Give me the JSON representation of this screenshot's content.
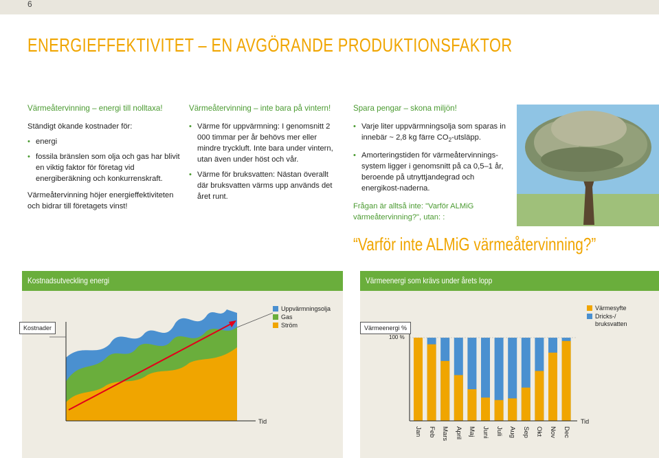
{
  "page_number": "6",
  "title": "ENERGIEFFEKTIVITET – EN AVGÖRANDE PRODUKTIONSFAKTOR",
  "col1": {
    "heading": "Värmeåtervinning – energi till nolltaxa!",
    "intro": "Ständigt ökande kostnader för:",
    "bullets": [
      "energi",
      "fossila bränslen som olja och gas har blivit en viktig faktor för företag vid energiberäkning och konkurrenskraft."
    ],
    "para": "Värmeåtervinning höjer energieffektiviteten och bidrar till företagets vinst!"
  },
  "col2": {
    "heading": "Värmeåtervinning – inte bara på vintern!",
    "bullets": [
      "Värme för uppvärmning: I genomsnitt 2 000 timmar per år behövs mer eller mindre tryckluft. Inte bara under vintern, utan även under höst och vår.",
      "Värme för bruksvatten: Nästan överallt där bruksvatten värms upp används det året runt."
    ]
  },
  "col3": {
    "heading": "Spara pengar – skona miljön!",
    "bullet1_a": "Varje liter uppvärmningsolja som sparas in innebär ~ 2,8 kg färre CO",
    "bullet1_sub": "2",
    "bullet1_b": "-utsläpp.",
    "bullet2": "Amorteringstiden för värmeåtervinnings-system ligger i genomsnitt på ca 0,5–1 år, beroende på utnyttjandegrad och energikost-naderna.",
    "question": "Frågan är alltså inte: \"Varför ALMiG värmeåtervinning?\", utan: :"
  },
  "quote": "“Varför inte ALMiG värmeåtervinning?”",
  "left_chart": {
    "band_title": "Kostnadsutveckling energi",
    "y_label": "Kostnader",
    "x_label": "Tid",
    "legend": [
      {
        "label": "Uppvärmningsolja",
        "color": "#4a90d0"
      },
      {
        "label": "Gas",
        "color": "#6aae3c"
      },
      {
        "label": "Ström",
        "color": "#f0a500"
      }
    ]
  },
  "right_chart": {
    "band_title": "Värmeenergi som krävs under årets lopp",
    "y_label_a": "Värmeenergi",
    "y_label_b": "%",
    "ref_label": "100 %",
    "x_label": "Tid",
    "legend": [
      {
        "label": "Värmesyfte",
        "color": "#f0a500"
      },
      {
        "label": "Dricks-/ bruksvatten",
        "color": "#4a90d0"
      }
    ],
    "chart_data": {
      "type": "bar",
      "categories": [
        "Jan",
        "Feb",
        "Mars",
        "April",
        "Maj",
        "Juni",
        "Juli",
        "Aug",
        "Sep",
        "Okt",
        "Nov",
        "Dec"
      ],
      "series": [
        {
          "name": "Värmesyfte",
          "values": [
            100,
            92,
            72,
            55,
            38,
            28,
            25,
            27,
            40,
            60,
            82,
            96
          ]
        },
        {
          "name": "Dricks-/ bruksvatten",
          "values": [
            100,
            100,
            100,
            100,
            100,
            100,
            100,
            100,
            100,
            100,
            100,
            100
          ]
        }
      ],
      "ylim": [
        0,
        110
      ]
    }
  }
}
